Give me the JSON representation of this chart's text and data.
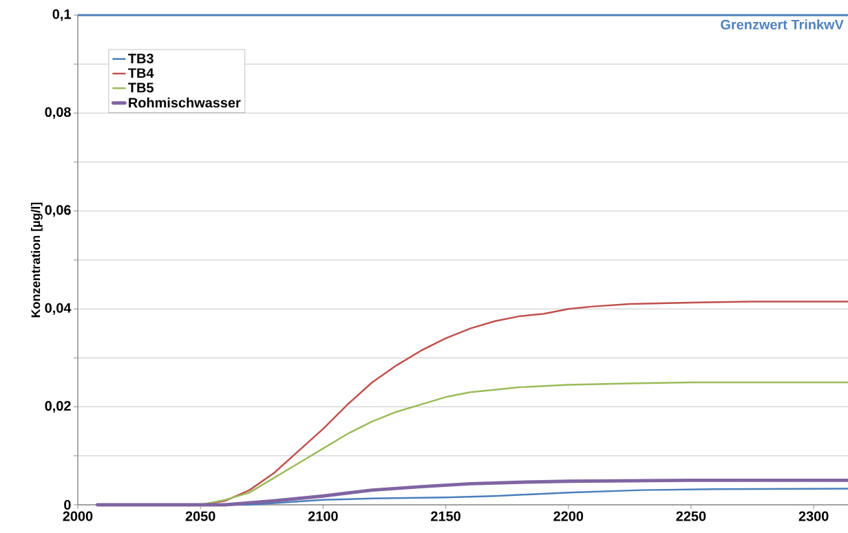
{
  "chart_data": {
    "type": "line",
    "ylabel": "Konzentration [µg/l]",
    "xlim": [
      2000,
      2314
    ],
    "xticks": [
      2000,
      2050,
      2100,
      2150,
      2200,
      2250,
      2300
    ],
    "ylim": [
      0,
      0.1
    ],
    "yticks": [
      {
        "value": 0,
        "label": "0"
      },
      {
        "value": 0.01,
        "label": null
      },
      {
        "value": 0.02,
        "label": "0,02"
      },
      {
        "value": 0.03,
        "label": null
      },
      {
        "value": 0.04,
        "label": "0,04"
      },
      {
        "value": 0.05,
        "label": null
      },
      {
        "value": 0.06,
        "label": "0,06"
      },
      {
        "value": 0.07,
        "label": null
      },
      {
        "value": 0.08,
        "label": "0,08"
      },
      {
        "value": 0.09,
        "label": null
      },
      {
        "value": 0.1,
        "label": "0,1"
      }
    ],
    "grid": "y",
    "legend": "top left",
    "marker": "none",
    "line_style": "solid",
    "series": [
      {
        "name": "TB3",
        "color": "#4a7ebb",
        "x": [
          2008,
          2070,
          2100,
          2120,
          2150,
          2170,
          2200,
          2230,
          2260,
          2314
        ],
        "values": [
          0,
          0,
          0.001,
          0.0013,
          0.0015,
          0.0018,
          0.0025,
          0.003,
          0.0032,
          0.0033
        ]
      },
      {
        "name": "TB4",
        "color": "#c0504d",
        "x": [
          2008,
          2050,
          2060,
          2070,
          2080,
          2090,
          2100,
          2110,
          2120,
          2130,
          2140,
          2150,
          2160,
          2170,
          2180,
          2190,
          2200,
          2210,
          2225,
          2250,
          2275,
          2314
        ],
        "values": [
          0,
          0,
          0.0008,
          0.003,
          0.0065,
          0.011,
          0.0155,
          0.0205,
          0.025,
          0.0285,
          0.0315,
          0.034,
          0.036,
          0.0375,
          0.0385,
          0.039,
          0.04,
          0.0405,
          0.041,
          0.0413,
          0.0415,
          0.0415
        ]
      },
      {
        "name": "TB5",
        "color": "#9bbb59",
        "x": [
          2008,
          2050,
          2060,
          2070,
          2080,
          2090,
          2100,
          2110,
          2120,
          2130,
          2140,
          2150,
          2160,
          2170,
          2180,
          2200,
          2225,
          2250,
          2314
        ],
        "values": [
          0,
          0,
          0.001,
          0.0025,
          0.0055,
          0.0085,
          0.0115,
          0.0145,
          0.017,
          0.019,
          0.0205,
          0.022,
          0.023,
          0.0235,
          0.024,
          0.0245,
          0.0248,
          0.025,
          0.025
        ]
      },
      {
        "name": "Rohmischwasser",
        "color": "#8064a2",
        "x": [
          2008,
          2060,
          2080,
          2100,
          2120,
          2140,
          2160,
          2180,
          2200,
          2250,
          2314
        ],
        "values": [
          0,
          0,
          0.0008,
          0.0018,
          0.003,
          0.0037,
          0.0043,
          0.0046,
          0.0048,
          0.005,
          0.005
        ]
      }
    ],
    "ref_lines": [
      {
        "axis": "y",
        "value": 0.1,
        "label": "Grenzwert TrinkwV",
        "color": "#4f81bd",
        "line_style": "solid"
      }
    ]
  }
}
